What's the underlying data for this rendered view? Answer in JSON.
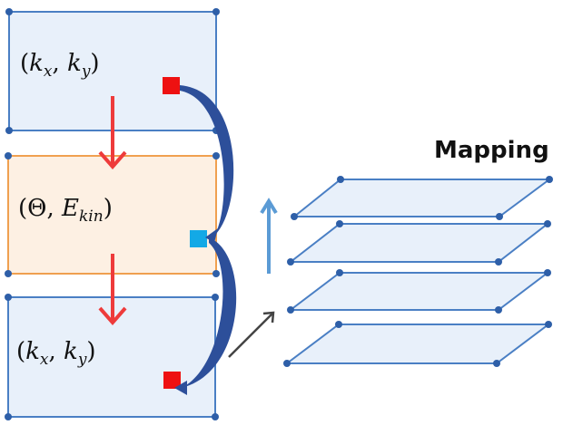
{
  "title": "Mapping",
  "boxes": [
    {
      "label_open": "(",
      "v1": "k",
      "s1": "x",
      "sep": ", ",
      "v2": "k",
      "s2": "y",
      "label_close": ")"
    },
    {
      "label_open": "(",
      "v1": "Θ",
      "s1": "",
      "sep": ", ",
      "v2": "E",
      "s2": "kin",
      "label_close": ")"
    },
    {
      "label_open": "(",
      "v1": "k",
      "s1": "x",
      "sep": ", ",
      "v2": "k",
      "s2": "y",
      "label_close": ")"
    }
  ],
  "colors": {
    "box_blue_fill": "#e8f0fa",
    "box_blue_stroke": "#4a7fc4",
    "box_orange_fill": "#fdf0e3",
    "box_orange_stroke": "#f0a050",
    "corner_dot": "#2e5fa8",
    "down_arrow": "#ee3b3b",
    "marker_red": "#ee1111",
    "marker_cyan": "#13a9e6",
    "curve_arrow": "#2d4f9a",
    "up_arrow": "#5b9bd5",
    "diag_arrow": "#444444",
    "plane_fill": "#e8f0fa",
    "plane_stroke": "#4a7fc4"
  },
  "layers_count_note": ""
}
